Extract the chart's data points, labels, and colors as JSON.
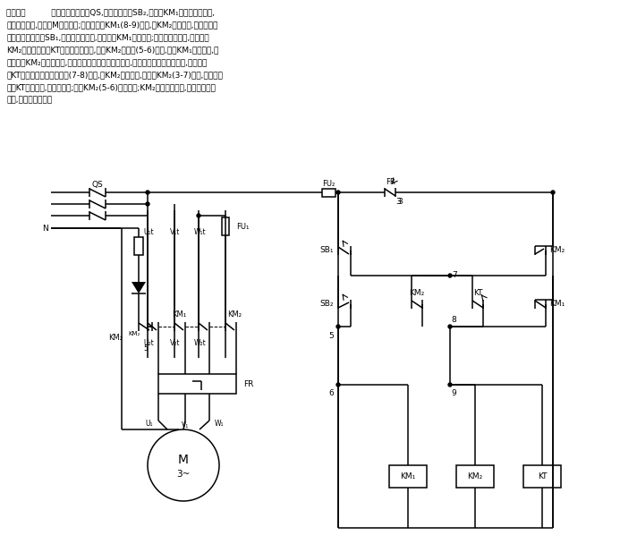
{
  "bg_color": "#ffffff",
  "fig_width": 6.93,
  "fig_height": 6.08,
  "description_lines": [
    "电路如图          所示。合上总开关QS,按下启动按钮SB₂,接触器KM₁得电吸合并自锁,",
    "其主触点闭合,电动机M启动运转;其常闭触点KM₁(8-9)断开,使KM₂不能得电,实现互锁。",
    "按下复合停止按钮SB₁,其常闭触点断开,使接触器KM₁失电释放;其常开触点闭合,使接触器",
    "KM₂和时间继电器KT得电吸合并自锁,于是KM₂的触点(5-6)断开,确保KM₁不能得电,实",
    "现互锁。KM₂主触点闭合,电动机定子绕组内通入直流电,能耗制动开始。几秒钟后,时间继电",
    "器KT的延时断开的常闭触点(7-8)断开,使KM₂失电释放,其触点KM₂(3-7)断开,使时间继",
    "电器KT失电释放,其触点复位;触点KM₂(5-6)恢复闭合;KM₂的主触点断开,切断直流制动",
    "电源,能耗制动结束。"
  ],
  "lw": 1.1
}
